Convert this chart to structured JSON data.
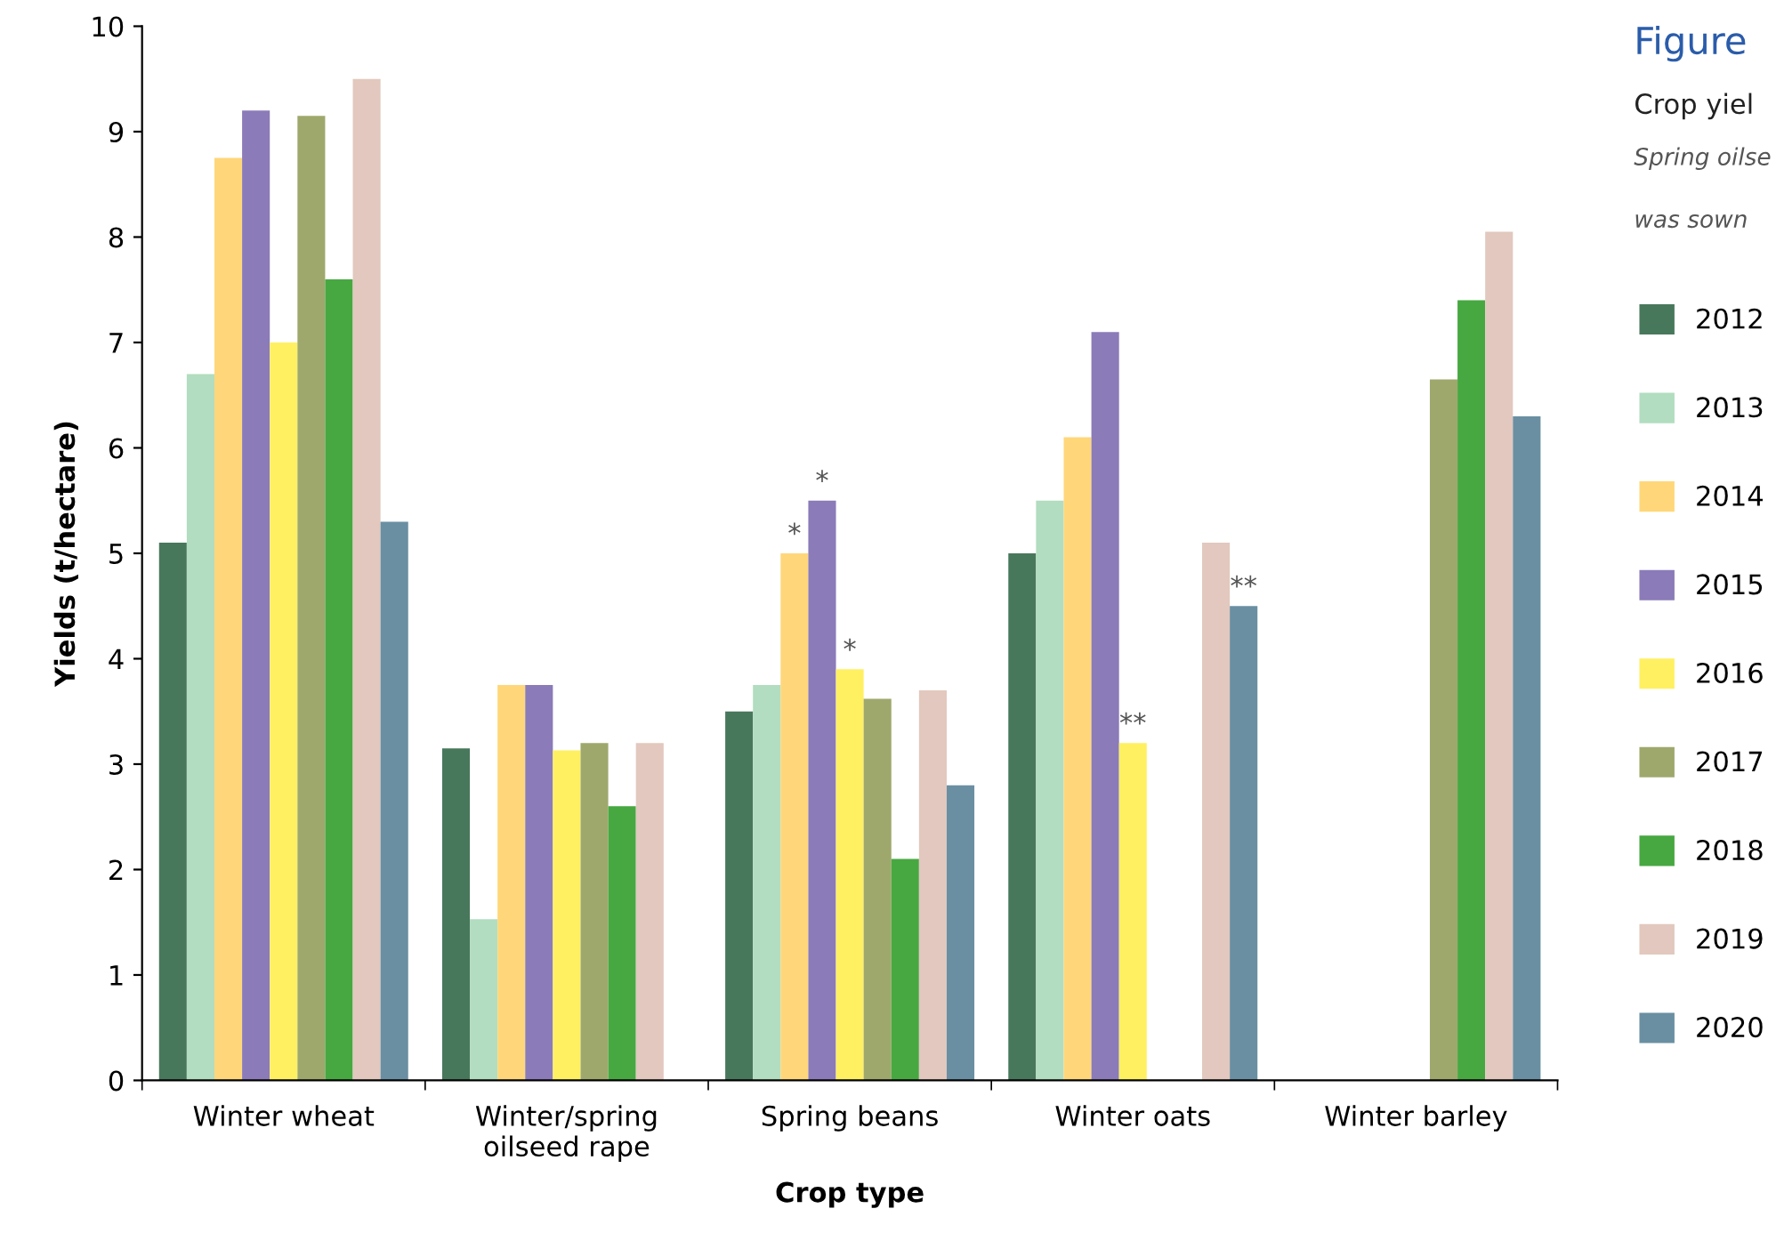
{
  "chart_data": {
    "type": "bar",
    "title": "Figure",
    "subtitle": "Crop yiel",
    "xlabel": "Crop type",
    "ylabel": "Yields (t/hectare)",
    "categories": [
      "Winter wheat",
      "Winter/spring\noilseed rape",
      "Spring beans",
      "Winter oats",
      "Winter barley"
    ],
    "series": [
      {
        "name": "2012",
        "color": "#48785c",
        "values": [
          5.1,
          3.15,
          3.5,
          5.0,
          null
        ]
      },
      {
        "name": "2013",
        "color": "#b2ddc0",
        "values": [
          6.7,
          1.53,
          3.75,
          5.5,
          null
        ]
      },
      {
        "name": "2014",
        "color": "#ffd77a",
        "values": [
          8.75,
          3.75,
          5.0,
          6.1,
          null
        ],
        "value_labels": [
          null,
          null,
          "*",
          null,
          null
        ]
      },
      {
        "name": "2015",
        "color": "#8b7bb8",
        "values": [
          9.2,
          3.75,
          5.5,
          7.1,
          null
        ],
        "value_labels": [
          null,
          null,
          "*",
          null,
          null
        ]
      },
      {
        "name": "2016",
        "color": "#fff062",
        "values": [
          7.0,
          3.13,
          3.9,
          3.2,
          null
        ],
        "value_labels": [
          null,
          null,
          "*",
          "**",
          null
        ]
      },
      {
        "name": "2017",
        "color": "#9fa86c",
        "values": [
          9.15,
          3.2,
          3.62,
          null,
          6.65
        ]
      },
      {
        "name": "2018",
        "color": "#47a841",
        "values": [
          7.6,
          2.6,
          2.1,
          null,
          7.4
        ]
      },
      {
        "name": "2019",
        "color": "#e2c8be",
        "values": [
          9.5,
          3.2,
          3.7,
          5.1,
          8.05
        ]
      },
      {
        "name": "2020",
        "color": "#6a8fa2",
        "values": [
          5.3,
          null,
          2.8,
          4.5,
          6.3
        ],
        "value_labels": [
          null,
          null,
          null,
          "**",
          null
        ]
      }
    ],
    "ylim": [
      0,
      10
    ],
    "yticks": [
      0,
      1,
      2,
      3,
      4,
      5,
      6,
      7,
      8,
      9,
      10
    ],
    "grid": false,
    "legend": "right",
    "annotations": [
      "Spring oilse",
      "was sown"
    ]
  }
}
